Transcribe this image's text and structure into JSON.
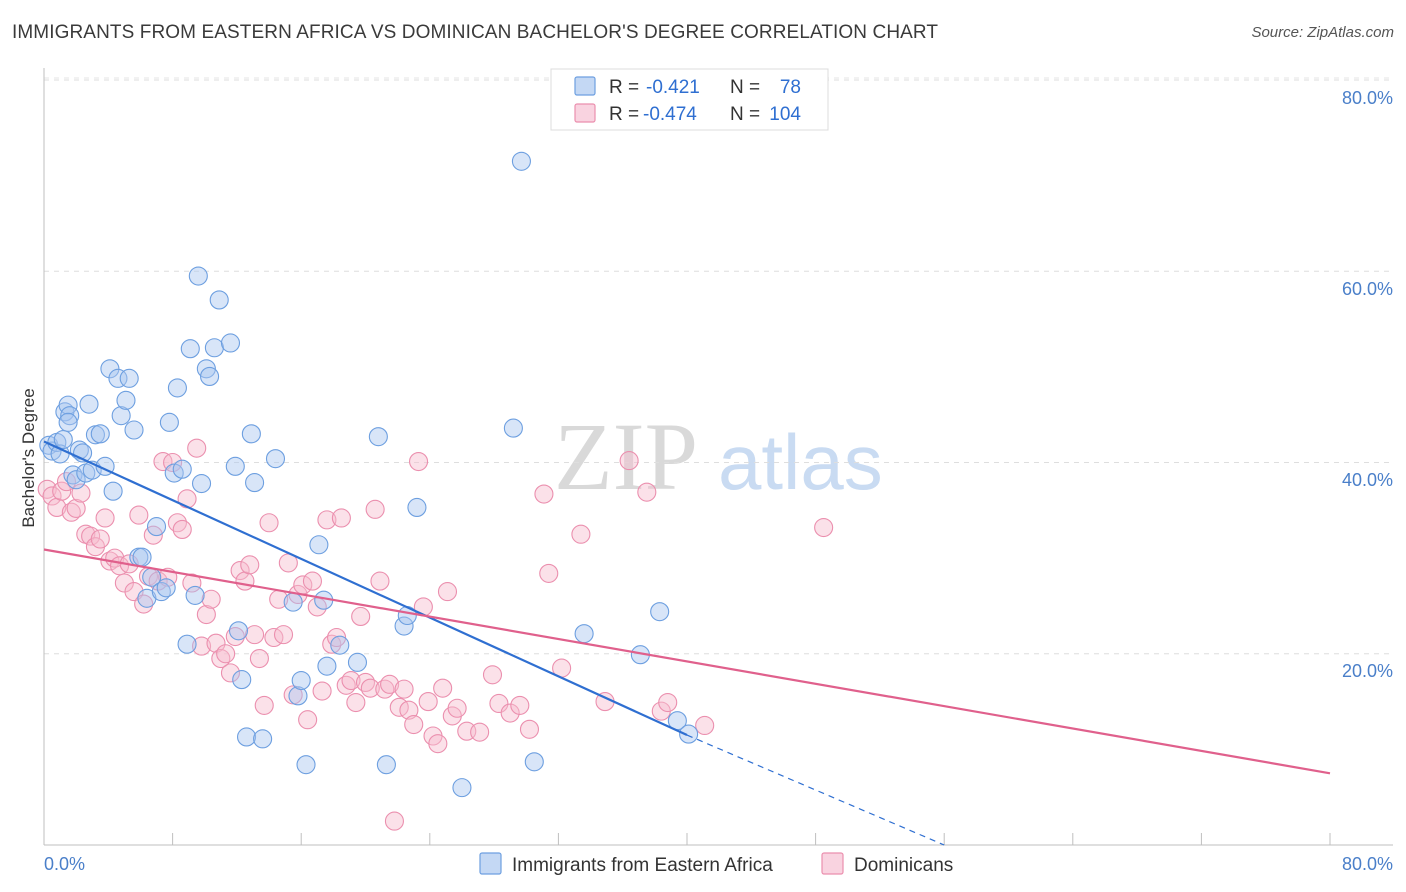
{
  "title": "IMMIGRANTS FROM EASTERN AFRICA VS DOMINICAN BACHELOR'S DEGREE CORRELATION CHART",
  "source": "Source: ZipAtlas.com",
  "watermark": {
    "zip": "ZIP",
    "atlas": "atlas"
  },
  "colors": {
    "blue_fill": "#a8c6f0",
    "blue_stroke": "#6d9fe0",
    "blue_line": "#2f6fd1",
    "pink_fill": "#f6bccf",
    "pink_stroke": "#eb8fae",
    "pink_line": "#e0608c"
  },
  "legend": {
    "rows": [
      {
        "r_label": "R =",
        "r_value": "-0.421",
        "n_label": "N =",
        "n_value": "78"
      },
      {
        "r_label": "R =",
        "r_value": "-0.474",
        "n_label": "N =",
        "n_value": "104"
      }
    ]
  },
  "chart_data": {
    "type": "scatter",
    "title": "IMMIGRANTS FROM EASTERN AFRICA VS DOMINICAN BACHELOR'S DEGREE CORRELATION CHART",
    "xlabel": "",
    "ylabel": "Bachelor's Degree",
    "xlim": [
      0,
      80
    ],
    "ylim": [
      0,
      80
    ],
    "x_tick_labels": [
      "0.0%",
      "80.0%"
    ],
    "y_tick_labels": [
      "20.0%",
      "40.0%",
      "60.0%",
      "80.0%"
    ],
    "y_ticks": [
      20,
      40,
      60,
      80
    ],
    "legend_placement": "top-center",
    "series": [
      {
        "name": "Immigrants from Eastern Africa",
        "color": "#6d9fe0",
        "trend": {
          "x": [
            0,
            40
          ],
          "y": [
            42.2,
            11.5
          ],
          "dashed_extension_to": [
            56,
            0
          ]
        },
        "points": [
          [
            0.3,
            41.8
          ],
          [
            0.5,
            41.2
          ],
          [
            0.8,
            42.1
          ],
          [
            1.0,
            40.9
          ],
          [
            1.2,
            42.4
          ],
          [
            1.3,
            45.3
          ],
          [
            1.5,
            46.0
          ],
          [
            1.6,
            44.9
          ],
          [
            1.8,
            38.7
          ],
          [
            2.0,
            38.2
          ],
          [
            2.2,
            41.3
          ],
          [
            2.4,
            41.0
          ],
          [
            2.6,
            38.9
          ],
          [
            2.8,
            46.1
          ],
          [
            3.0,
            39.2
          ],
          [
            3.2,
            42.9
          ],
          [
            3.5,
            43.0
          ],
          [
            3.8,
            39.6
          ],
          [
            4.1,
            49.8
          ],
          [
            4.3,
            37.0
          ],
          [
            4.6,
            48.8
          ],
          [
            4.8,
            44.9
          ],
          [
            5.1,
            46.5
          ],
          [
            5.3,
            48.8
          ],
          [
            5.6,
            43.4
          ],
          [
            5.9,
            30.1
          ],
          [
            6.1,
            30.1
          ],
          [
            6.4,
            25.8
          ],
          [
            6.7,
            28.0
          ],
          [
            7.0,
            33.3
          ],
          [
            7.3,
            26.5
          ],
          [
            7.6,
            26.9
          ],
          [
            7.8,
            44.2
          ],
          [
            8.1,
            38.9
          ],
          [
            8.3,
            47.8
          ],
          [
            8.6,
            39.3
          ],
          [
            8.9,
            21.0
          ],
          [
            9.1,
            51.9
          ],
          [
            9.4,
            26.1
          ],
          [
            9.6,
            59.5
          ],
          [
            9.8,
            37.8
          ],
          [
            10.1,
            49.8
          ],
          [
            10.3,
            49.0
          ],
          [
            10.6,
            52.0
          ],
          [
            10.9,
            57.0
          ],
          [
            11.6,
            52.5
          ],
          [
            11.9,
            39.6
          ],
          [
            12.1,
            22.4
          ],
          [
            12.3,
            17.3
          ],
          [
            12.6,
            11.3
          ],
          [
            12.9,
            43.0
          ],
          [
            13.1,
            37.9
          ],
          [
            13.6,
            11.1
          ],
          [
            14.4,
            40.4
          ],
          [
            15.5,
            25.4
          ],
          [
            15.8,
            15.6
          ],
          [
            16.0,
            17.2
          ],
          [
            16.3,
            8.4
          ],
          [
            17.1,
            31.4
          ],
          [
            17.4,
            25.6
          ],
          [
            17.6,
            18.7
          ],
          [
            18.4,
            20.9
          ],
          [
            19.5,
            19.1
          ],
          [
            20.8,
            42.7
          ],
          [
            21.3,
            8.4
          ],
          [
            22.4,
            22.9
          ],
          [
            22.6,
            24.0
          ],
          [
            23.2,
            35.3
          ],
          [
            26.0,
            6.0
          ],
          [
            29.2,
            43.6
          ],
          [
            29.7,
            71.5
          ],
          [
            30.5,
            8.7
          ],
          [
            33.6,
            22.1
          ],
          [
            37.1,
            19.9
          ],
          [
            38.3,
            24.4
          ],
          [
            39.4,
            13.0
          ],
          [
            40.1,
            11.6
          ],
          [
            1.5,
            44.2
          ]
        ]
      },
      {
        "name": "Dominicans",
        "color": "#eb8fae",
        "trend": {
          "x": [
            0,
            80
          ],
          "y": [
            30.9,
            7.5
          ]
        },
        "points": [
          [
            0.2,
            37.2
          ],
          [
            0.5,
            36.5
          ],
          [
            0.8,
            35.3
          ],
          [
            1.1,
            37.0
          ],
          [
            1.4,
            38.0
          ],
          [
            1.7,
            34.8
          ],
          [
            2.0,
            35.2
          ],
          [
            2.3,
            36.8
          ],
          [
            2.6,
            32.5
          ],
          [
            2.9,
            32.3
          ],
          [
            3.2,
            31.2
          ],
          [
            3.5,
            32.0
          ],
          [
            3.8,
            34.2
          ],
          [
            4.1,
            29.7
          ],
          [
            4.4,
            30.0
          ],
          [
            4.7,
            29.2
          ],
          [
            5.0,
            27.4
          ],
          [
            5.3,
            29.4
          ],
          [
            5.6,
            26.5
          ],
          [
            5.9,
            34.5
          ],
          [
            6.2,
            25.2
          ],
          [
            6.5,
            28.1
          ],
          [
            6.8,
            32.4
          ],
          [
            7.1,
            27.6
          ],
          [
            7.4,
            40.1
          ],
          [
            7.7,
            28.0
          ],
          [
            8.0,
            40.0
          ],
          [
            8.3,
            33.7
          ],
          [
            8.6,
            33.0
          ],
          [
            8.9,
            36.2
          ],
          [
            9.2,
            27.4
          ],
          [
            9.5,
            41.5
          ],
          [
            9.8,
            20.8
          ],
          [
            10.1,
            24.1
          ],
          [
            10.4,
            25.7
          ],
          [
            10.7,
            21.1
          ],
          [
            11.0,
            19.5
          ],
          [
            11.3,
            20.0
          ],
          [
            11.6,
            18.0
          ],
          [
            11.9,
            21.8
          ],
          [
            12.2,
            28.7
          ],
          [
            12.5,
            27.6
          ],
          [
            12.8,
            29.3
          ],
          [
            13.1,
            22.0
          ],
          [
            13.4,
            19.5
          ],
          [
            13.7,
            14.6
          ],
          [
            14.0,
            33.7
          ],
          [
            14.3,
            21.7
          ],
          [
            14.6,
            25.7
          ],
          [
            14.9,
            22.0
          ],
          [
            15.2,
            29.5
          ],
          [
            15.5,
            15.7
          ],
          [
            15.8,
            26.2
          ],
          [
            16.1,
            27.2
          ],
          [
            16.4,
            13.1
          ],
          [
            16.7,
            27.6
          ],
          [
            17.0,
            24.9
          ],
          [
            17.3,
            16.1
          ],
          [
            17.6,
            34.0
          ],
          [
            17.9,
            21.0
          ],
          [
            18.2,
            21.7
          ],
          [
            18.5,
            34.2
          ],
          [
            18.8,
            16.7
          ],
          [
            19.1,
            17.2
          ],
          [
            19.4,
            14.9
          ],
          [
            19.7,
            23.9
          ],
          [
            20.0,
            17.0
          ],
          [
            20.3,
            16.4
          ],
          [
            20.6,
            35.1
          ],
          [
            20.9,
            27.6
          ],
          [
            21.2,
            16.3
          ],
          [
            21.5,
            16.8
          ],
          [
            21.8,
            2.5
          ],
          [
            22.1,
            14.4
          ],
          [
            22.4,
            16.3
          ],
          [
            22.7,
            14.1
          ],
          [
            23.0,
            12.6
          ],
          [
            23.3,
            40.1
          ],
          [
            23.6,
            24.9
          ],
          [
            23.9,
            15.0
          ],
          [
            24.2,
            11.4
          ],
          [
            24.5,
            10.6
          ],
          [
            24.8,
            16.4
          ],
          [
            25.1,
            26.5
          ],
          [
            25.4,
            13.5
          ],
          [
            25.7,
            14.3
          ],
          [
            26.3,
            11.9
          ],
          [
            27.1,
            11.8
          ],
          [
            27.9,
            17.8
          ],
          [
            28.3,
            14.8
          ],
          [
            29.0,
            13.8
          ],
          [
            29.6,
            14.6
          ],
          [
            30.2,
            12.1
          ],
          [
            31.1,
            36.7
          ],
          [
            31.4,
            28.4
          ],
          [
            32.2,
            18.5
          ],
          [
            33.4,
            32.5
          ],
          [
            34.9,
            15.0
          ],
          [
            36.4,
            40.2
          ],
          [
            37.5,
            36.9
          ],
          [
            38.4,
            14.0
          ],
          [
            38.8,
            14.9
          ],
          [
            41.1,
            12.5
          ],
          [
            48.5,
            33.2
          ]
        ]
      }
    ]
  }
}
